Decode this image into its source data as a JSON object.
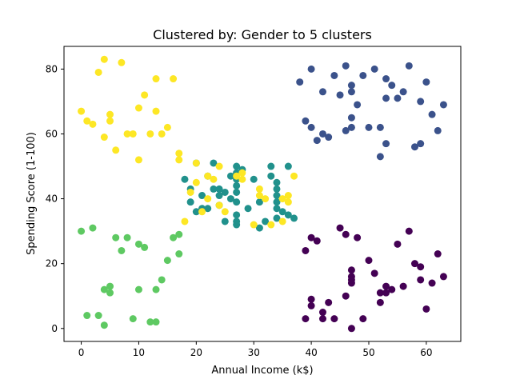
{
  "chart_data": {
    "type": "scatter",
    "title": "Clustered by: Gender to 5 clusters",
    "xlabel": "Annual Income (k$)",
    "ylabel": "Spending Score (1-100)",
    "xlim": [
      -3,
      66
    ],
    "ylim": [
      -4,
      87
    ],
    "xticks": [
      0,
      10,
      20,
      30,
      40,
      50,
      60
    ],
    "yticks": [
      0,
      20,
      40,
      60,
      80
    ],
    "grid": false,
    "legend": "none",
    "series": [
      {
        "color": "#440154",
        "points": [
          [
            39,
            24
          ],
          [
            40,
            28
          ],
          [
            41,
            27
          ],
          [
            39,
            3
          ],
          [
            40,
            9
          ],
          [
            40,
            7
          ],
          [
            42,
            5
          ],
          [
            42,
            3
          ],
          [
            43,
            8
          ],
          [
            44,
            3
          ],
          [
            45,
            31
          ],
          [
            46,
            29
          ],
          [
            46,
            10
          ],
          [
            47,
            0
          ],
          [
            47,
            18
          ],
          [
            47,
            16
          ],
          [
            47,
            14
          ],
          [
            47,
            15
          ],
          [
            48,
            28
          ],
          [
            49,
            3
          ],
          [
            50,
            21
          ],
          [
            51,
            17
          ],
          [
            52,
            11
          ],
          [
            52,
            8
          ],
          [
            53,
            13
          ],
          [
            53,
            11
          ],
          [
            54,
            12
          ],
          [
            55,
            26
          ],
          [
            56,
            13
          ],
          [
            57,
            30
          ],
          [
            58,
            20
          ],
          [
            59,
            19
          ],
          [
            59,
            15
          ],
          [
            60,
            6
          ],
          [
            61,
            14
          ],
          [
            62,
            23
          ],
          [
            63,
            16
          ]
        ]
      },
      {
        "color": "#3b528b",
        "points": [
          [
            38,
            76
          ],
          [
            39,
            64
          ],
          [
            40,
            80
          ],
          [
            40,
            62
          ],
          [
            41,
            58
          ],
          [
            42,
            73
          ],
          [
            42,
            60
          ],
          [
            43,
            59
          ],
          [
            44,
            78
          ],
          [
            45,
            72
          ],
          [
            46,
            81
          ],
          [
            46,
            61
          ],
          [
            47,
            75
          ],
          [
            47,
            73
          ],
          [
            47,
            65
          ],
          [
            47,
            62
          ],
          [
            48,
            69
          ],
          [
            49,
            78
          ],
          [
            50,
            62
          ],
          [
            51,
            80
          ],
          [
            52,
            62
          ],
          [
            52,
            53
          ],
          [
            53,
            71
          ],
          [
            53,
            57
          ],
          [
            53,
            77
          ],
          [
            54,
            75
          ],
          [
            55,
            71
          ],
          [
            56,
            73
          ],
          [
            57,
            81
          ],
          [
            58,
            56
          ],
          [
            59,
            57
          ],
          [
            59,
            70
          ],
          [
            60,
            76
          ],
          [
            61,
            66
          ],
          [
            62,
            61
          ],
          [
            63,
            69
          ]
        ]
      },
      {
        "color": "#21918c",
        "points": [
          [
            18,
            46
          ],
          [
            19,
            43
          ],
          [
            19,
            39
          ],
          [
            20,
            51
          ],
          [
            20,
            36
          ],
          [
            21,
            41
          ],
          [
            21,
            37
          ],
          [
            22,
            47
          ],
          [
            22,
            37
          ],
          [
            23,
            43
          ],
          [
            23,
            51
          ],
          [
            24,
            43
          ],
          [
            24,
            41
          ],
          [
            24,
            38
          ],
          [
            25,
            42
          ],
          [
            25,
            33
          ],
          [
            26,
            47
          ],
          [
            26,
            40
          ],
          [
            27,
            50
          ],
          [
            27,
            48
          ],
          [
            27,
            46
          ],
          [
            27,
            44
          ],
          [
            27,
            42
          ],
          [
            27,
            39
          ],
          [
            27,
            35
          ],
          [
            27,
            33
          ],
          [
            27,
            32
          ],
          [
            28,
            49
          ],
          [
            29,
            37
          ],
          [
            30,
            46
          ],
          [
            31,
            31
          ],
          [
            31,
            39
          ],
          [
            32,
            33
          ],
          [
            33,
            50
          ],
          [
            33,
            47
          ],
          [
            34,
            45
          ],
          [
            34,
            43
          ],
          [
            34,
            41
          ],
          [
            34,
            39
          ],
          [
            34,
            37
          ],
          [
            34,
            34
          ],
          [
            35,
            36
          ],
          [
            36,
            50
          ],
          [
            36,
            35
          ],
          [
            37,
            34
          ]
        ]
      },
      {
        "color": "#5ec962",
        "points": [
          [
            0,
            30
          ],
          [
            1,
            4
          ],
          [
            2,
            31
          ],
          [
            3,
            4
          ],
          [
            4,
            12
          ],
          [
            4,
            1
          ],
          [
            5,
            13
          ],
          [
            5,
            11
          ],
          [
            6,
            28
          ],
          [
            7,
            24
          ],
          [
            8,
            28
          ],
          [
            9,
            3
          ],
          [
            10,
            26
          ],
          [
            10,
            12
          ],
          [
            11,
            25
          ],
          [
            12,
            2
          ],
          [
            13,
            12
          ],
          [
            13,
            2
          ],
          [
            14,
            15
          ],
          [
            15,
            21
          ],
          [
            16,
            28
          ],
          [
            17,
            29
          ],
          [
            17,
            23
          ]
        ]
      },
      {
        "color": "#fde725",
        "points": [
          [
            0,
            67
          ],
          [
            1,
            64
          ],
          [
            2,
            63
          ],
          [
            3,
            79
          ],
          [
            4,
            83
          ],
          [
            4,
            59
          ],
          [
            5,
            66
          ],
          [
            5,
            64
          ],
          [
            6,
            55
          ],
          [
            7,
            82
          ],
          [
            8,
            60
          ],
          [
            9,
            60
          ],
          [
            10,
            68
          ],
          [
            10,
            52
          ],
          [
            11,
            72
          ],
          [
            12,
            60
          ],
          [
            13,
            77
          ],
          [
            13,
            67
          ],
          [
            14,
            60
          ],
          [
            15,
            62
          ],
          [
            16,
            77
          ],
          [
            17,
            54
          ],
          [
            17,
            52
          ],
          [
            18,
            33
          ],
          [
            19,
            42
          ],
          [
            20,
            51
          ],
          [
            20,
            45
          ],
          [
            21,
            36
          ],
          [
            22,
            40
          ],
          [
            22,
            47
          ],
          [
            23,
            46
          ],
          [
            24,
            50
          ],
          [
            24,
            38
          ],
          [
            25,
            36
          ],
          [
            27,
            47
          ],
          [
            28,
            48
          ],
          [
            28,
            46
          ],
          [
            30,
            32
          ],
          [
            31,
            43
          ],
          [
            31,
            41
          ],
          [
            32,
            40
          ],
          [
            33,
            32
          ],
          [
            35,
            33
          ],
          [
            35,
            40
          ],
          [
            36,
            41
          ],
          [
            36,
            39
          ],
          [
            37,
            47
          ]
        ]
      }
    ]
  }
}
